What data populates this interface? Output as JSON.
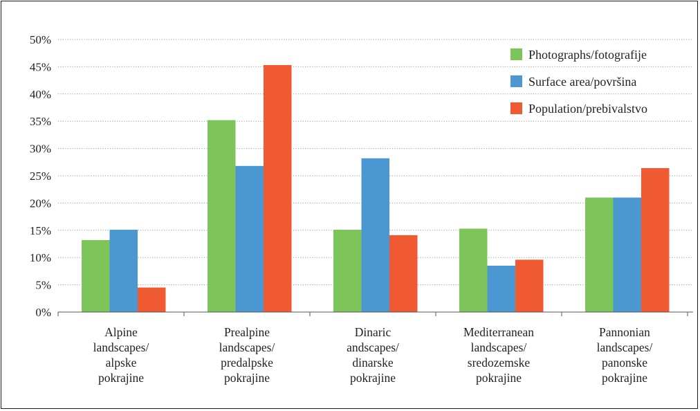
{
  "chart_data": {
    "type": "bar",
    "title": "",
    "xlabel": "",
    "ylabel": "",
    "ylim": [
      0,
      50
    ],
    "yticks": [
      "0%",
      "5%",
      "10%",
      "15%",
      "20%",
      "25%",
      "30%",
      "35%",
      "40%",
      "45%",
      "50%"
    ],
    "grid": "horizontal dotted",
    "legend_position": "top-right",
    "categories": [
      [
        "Alpine",
        "landscapes/",
        "alpske",
        "pokrajine"
      ],
      [
        "Prealpine",
        "landscapes/",
        "predalpske",
        "pokrajine"
      ],
      [
        "Dinaric",
        "andscapes/",
        "dinarske",
        "pokrajine"
      ],
      [
        "Mediterranean",
        "landscapes/",
        "sredozemske",
        "pokrajine"
      ],
      [
        "Pannonian",
        "landscapes/",
        "panonske",
        "pokrajine"
      ]
    ],
    "series": [
      {
        "name": "Photographs/fotografije",
        "color": "#7dc55a",
        "values": [
          13.2,
          35.2,
          15.1,
          15.3,
          21.0
        ]
      },
      {
        "name": "Surface area/površina",
        "color": "#4a97d2",
        "values": [
          15.1,
          26.8,
          28.2,
          8.5,
          21.0
        ]
      },
      {
        "name": "Population/prebivalstvo",
        "color": "#ef5a33",
        "values": [
          4.5,
          45.3,
          14.1,
          9.6,
          26.4
        ]
      }
    ]
  }
}
